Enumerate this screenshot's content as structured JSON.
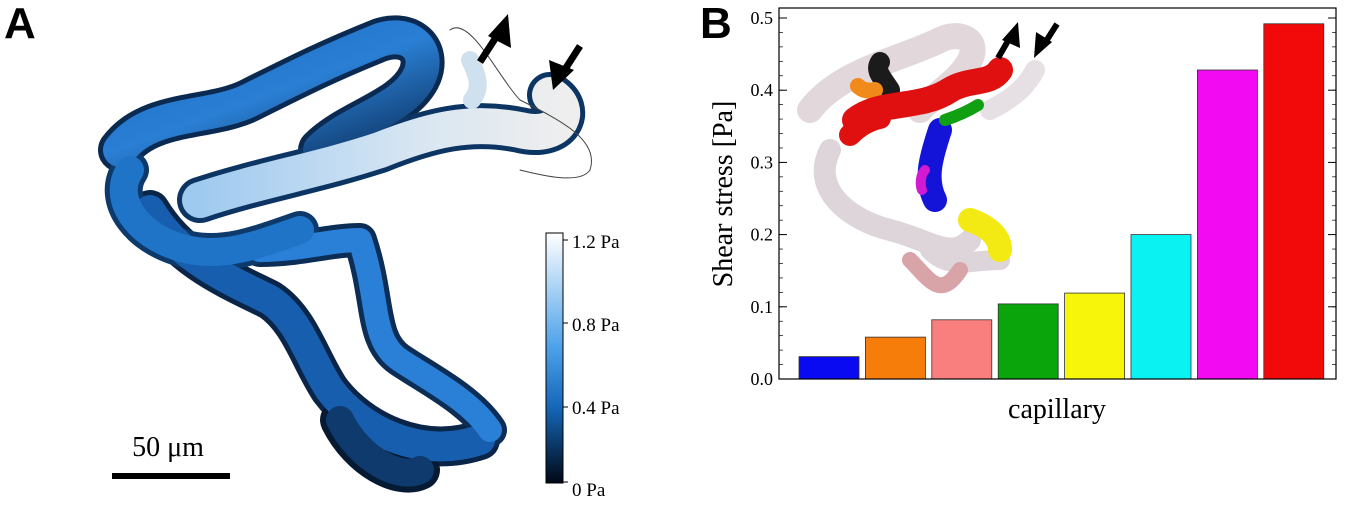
{
  "panel_a": {
    "letter": "A",
    "scale_bar_label": "50 μm",
    "colorbar": {
      "ticks": [
        "1.2 Pa",
        "0.8 Pa",
        "0.4 Pa",
        "0 Pa"
      ],
      "colors": {
        "top": "#ffffff",
        "mid": "#2f8ae0",
        "bottom": "#000814"
      }
    }
  },
  "panel_b": {
    "letter": "B"
  },
  "chart_data": {
    "type": "bar",
    "title": "",
    "xlabel": "capillary",
    "ylabel": "Shear stress [Pa]",
    "ylim": [
      0,
      0.5
    ],
    "yticks": [
      "0.0",
      "0.1",
      "0.2",
      "0.3",
      "0.4",
      "0.5"
    ],
    "grid": false,
    "categories": [
      "blue",
      "orange",
      "pink",
      "green",
      "yellow",
      "cyan",
      "magenta",
      "red"
    ],
    "values": [
      0.031,
      0.058,
      0.082,
      0.104,
      0.119,
      0.2,
      0.428,
      0.492
    ],
    "colors": [
      "#0a0af2",
      "#f77d0b",
      "#f97e7e",
      "#0aa50a",
      "#f7f50a",
      "#0af2f2",
      "#f20af2",
      "#f20a0a"
    ]
  }
}
